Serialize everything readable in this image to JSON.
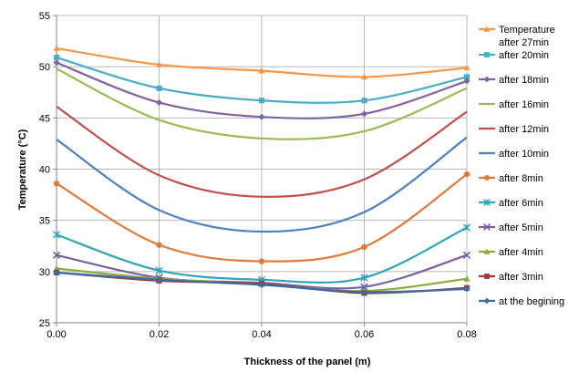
{
  "chart_data": {
    "type": "line",
    "xlabel": "Thickness of the panel (m)",
    "ylabel": "Temperature (°C)",
    "x": [
      0.0,
      0.02,
      0.04,
      0.06,
      0.08
    ],
    "x_tick_labels": [
      "0.00",
      "0.02",
      "0.04",
      "0.06",
      "0.08"
    ],
    "xlim": [
      0,
      0.08
    ],
    "ylim": [
      25,
      55
    ],
    "y_ticks": [
      25,
      30,
      35,
      40,
      45,
      50,
      55
    ],
    "grid": true,
    "legend_position": "right",
    "series": [
      {
        "name_lines": [
          "Temperature",
          "after 27min"
        ],
        "color": "#F79646",
        "marker": "triangle",
        "values": [
          51.8,
          50.2,
          49.6,
          49.0,
          49.9
        ]
      },
      {
        "name_lines": [
          "after 20min"
        ],
        "color": "#4BACC6",
        "marker": "square",
        "values": [
          50.9,
          47.9,
          46.7,
          46.7,
          49.0
        ]
      },
      {
        "name_lines": [
          "after 18min"
        ],
        "color": "#8064A2",
        "marker": "diamond",
        "values": [
          50.4,
          46.5,
          45.1,
          45.4,
          48.6
        ]
      },
      {
        "name_lines": [
          "after 16min"
        ],
        "color": "#9BBB59",
        "marker": "none",
        "values": [
          49.8,
          44.8,
          43.0,
          43.7,
          47.9
        ]
      },
      {
        "name_lines": [
          "after 12min"
        ],
        "color": "#C0504D",
        "marker": "none",
        "values": [
          46.1,
          39.4,
          37.3,
          39.0,
          45.6
        ]
      },
      {
        "name_lines": [
          "after 10min"
        ],
        "color": "#4F81BD",
        "marker": "none",
        "values": [
          42.9,
          36.0,
          33.9,
          35.8,
          43.1
        ]
      },
      {
        "name_lines": [
          "after 8min"
        ],
        "color": "#E07B39",
        "marker": "circle",
        "values": [
          38.6,
          32.6,
          31.0,
          32.4,
          39.5
        ]
      },
      {
        "name_lines": [
          "after 6min"
        ],
        "color": "#31A4B8",
        "marker": "star",
        "values": [
          33.6,
          30.1,
          29.2,
          29.4,
          34.3
        ]
      },
      {
        "name_lines": [
          "after 5min"
        ],
        "color": "#7B5FA3",
        "marker": "x",
        "values": [
          31.6,
          29.4,
          28.9,
          28.5,
          31.6
        ]
      },
      {
        "name_lines": [
          "after 4min"
        ],
        "color": "#8AAA3C",
        "marker": "triangle",
        "values": [
          30.3,
          29.3,
          28.8,
          28.1,
          29.3
        ]
      },
      {
        "name_lines": [
          "after 3min"
        ],
        "color": "#A33A36",
        "marker": "square",
        "values": [
          29.9,
          29.1,
          28.8,
          27.9,
          28.4
        ]
      },
      {
        "name_lines": [
          "at the begining"
        ],
        "color": "#3A6BA5",
        "marker": "diamond",
        "values": [
          29.9,
          29.2,
          28.7,
          28.0,
          28.3
        ]
      }
    ]
  }
}
